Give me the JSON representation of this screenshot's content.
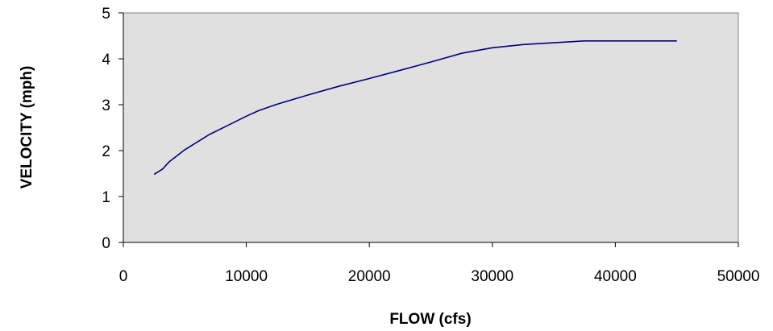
{
  "chart_data": {
    "type": "line",
    "title": "",
    "xlabel": "FLOW (cfs)",
    "ylabel": "VELOCITY (mph)",
    "xlim": [
      0,
      50000
    ],
    "ylim": [
      0,
      5
    ],
    "x_ticks": [
      "0",
      "10000",
      "20000",
      "30000",
      "40000",
      "50000"
    ],
    "y_ticks": [
      "0",
      "1",
      "2",
      "3",
      "4",
      "5"
    ],
    "grid": false,
    "plot_background": "#e0e0e0",
    "series": [
      {
        "color": "#000080",
        "x": [
          2500,
          3200,
          3700,
          5000,
          7000,
          8500,
          10000,
          11000,
          12500,
          15000,
          17500,
          20000,
          22500,
          25000,
          27500,
          30000,
          32500,
          35000,
          37500,
          40000,
          45000
        ],
        "y": [
          1.48,
          1.6,
          1.75,
          2.02,
          2.35,
          2.55,
          2.75,
          2.87,
          3.01,
          3.21,
          3.4,
          3.57,
          3.75,
          3.93,
          4.12,
          4.24,
          4.31,
          4.35,
          4.39,
          4.39,
          4.39
        ]
      }
    ]
  }
}
